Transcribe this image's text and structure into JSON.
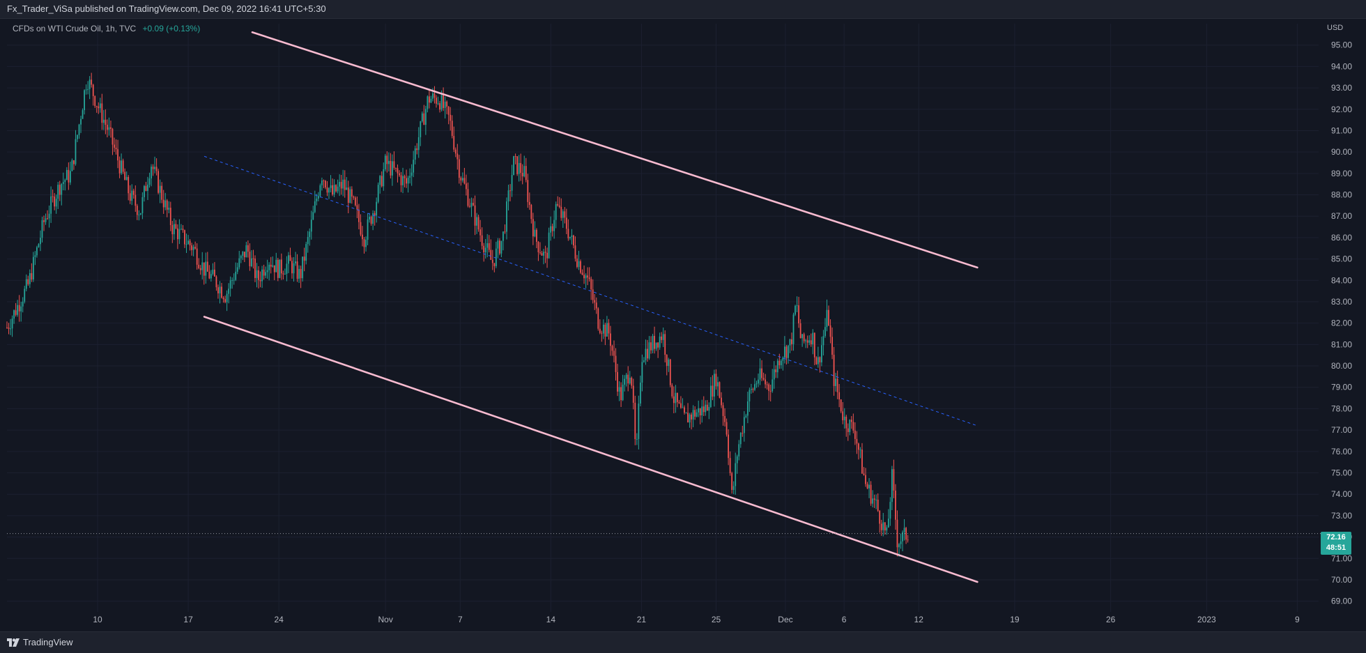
{
  "header": {
    "publisher": "Fx_Trader_ViSa published on TradingView.com, Dec 09, 2022 16:41 UTC+5:30"
  },
  "legend": {
    "symbol": "CFDs on WTI Crude Oil, 1h, TVC",
    "change": "+0.09 (+0.13%)"
  },
  "axis": {
    "currency": "USD"
  },
  "price_tag": {
    "price": "72.16",
    "countdown": "48:51"
  },
  "footer": {
    "brand": "TradingView"
  },
  "colors": {
    "background": "#131722",
    "up": "#26a69a",
    "down": "#ef5350",
    "channel": "#f8bbd0",
    "midline": "#2962ff",
    "price_line": "#9598a1"
  },
  "chart_data": {
    "type": "candlestick",
    "interval": "1h",
    "ylim": [
      68.5,
      96.0
    ],
    "y_ticks": [
      69,
      70,
      71,
      72,
      73,
      74,
      75,
      76,
      77,
      78,
      79,
      80,
      81,
      82,
      83,
      84,
      85,
      86,
      87,
      88,
      89,
      90,
      91,
      92,
      93,
      94,
      95
    ],
    "x_ticks": [
      "10",
      "17",
      "24",
      "Nov",
      "7",
      "14",
      "21",
      "25",
      "Dec",
      "6",
      "12",
      "19",
      "26",
      "2023",
      "9"
    ],
    "current_price": 72.16,
    "price_path": [
      [
        0,
        81.8
      ],
      [
        4,
        83.8
      ],
      [
        7,
        86.8
      ],
      [
        10,
        88.5
      ],
      [
        12,
        89.0
      ],
      [
        15,
        93.5
      ],
      [
        17,
        92.2
      ],
      [
        19,
        91.0
      ],
      [
        21,
        89.5
      ],
      [
        23,
        88.0
      ],
      [
        25,
        87.2
      ],
      [
        27,
        89.5
      ],
      [
        29,
        88.0
      ],
      [
        31,
        86.5
      ],
      [
        33,
        86.0
      ],
      [
        35,
        85.5
      ],
      [
        37,
        84.5
      ],
      [
        39,
        84.0
      ],
      [
        41,
        83.3
      ],
      [
        43,
        84.5
      ],
      [
        45,
        85.5
      ],
      [
        47,
        84.0
      ],
      [
        49,
        85.0
      ],
      [
        51,
        84.5
      ],
      [
        53,
        84.8
      ],
      [
        55,
        84.2
      ],
      [
        57,
        86.5
      ],
      [
        59,
        89.0
      ],
      [
        61,
        88.0
      ],
      [
        63,
        88.5
      ],
      [
        65,
        87.5
      ],
      [
        67,
        86.0
      ],
      [
        69,
        87.5
      ],
      [
        71,
        89.5
      ],
      [
        73,
        89.0
      ],
      [
        75,
        88.5
      ],
      [
        77,
        90.5
      ],
      [
        79,
        92.5
      ],
      [
        81,
        92.5
      ],
      [
        83,
        91.5
      ],
      [
        85,
        89.0
      ],
      [
        87,
        87.5
      ],
      [
        89,
        86.0
      ],
      [
        91,
        84.8
      ],
      [
        93,
        86.0
      ],
      [
        95,
        89.5
      ],
      [
        97,
        89.0
      ],
      [
        99,
        86.0
      ],
      [
        101,
        85.0
      ],
      [
        103,
        87.5
      ],
      [
        105,
        86.5
      ],
      [
        107,
        85.0
      ],
      [
        109,
        84.0
      ],
      [
        111,
        82.0
      ],
      [
        113,
        81.5
      ],
      [
        115,
        78.5
      ],
      [
        117,
        80.0
      ],
      [
        118,
        75.5
      ],
      [
        119,
        80.5
      ],
      [
        121,
        81.0
      ],
      [
        123,
        81.5
      ],
      [
        125,
        78.5
      ],
      [
        127,
        77.5
      ],
      [
        129,
        77.8
      ],
      [
        131,
        78.0
      ],
      [
        133,
        79.5
      ],
      [
        135,
        77.0
      ],
      [
        136,
        73.8
      ],
      [
        137,
        76.0
      ],
      [
        139,
        78.5
      ],
      [
        141,
        79.5
      ],
      [
        143,
        79.0
      ],
      [
        145,
        80.5
      ],
      [
        147,
        81.0
      ],
      [
        148,
        83.0
      ],
      [
        149,
        81.0
      ],
      [
        151,
        81.5
      ],
      [
        152,
        80.0
      ],
      [
        154,
        82.5
      ],
      [
        155,
        79.5
      ],
      [
        157,
        77.5
      ],
      [
        159,
        77.0
      ],
      [
        161,
        74.5
      ],
      [
        163,
        73.5
      ],
      [
        165,
        72.0
      ],
      [
        166,
        74.8
      ],
      [
        167,
        71.8
      ],
      [
        169,
        72.16
      ]
    ],
    "drawings": [
      {
        "type": "trendline",
        "name": "Upper channel",
        "p1": [
          46,
          95.6
        ],
        "p2": [
          182,
          84.6
        ]
      },
      {
        "type": "trendline",
        "name": "Lower channel",
        "p1": [
          37,
          82.3
        ],
        "p2": [
          182,
          69.9
        ]
      },
      {
        "type": "trendline-dashed",
        "name": "Mid line",
        "p1": [
          37,
          89.8
        ],
        "p2": [
          182,
          77.2
        ]
      }
    ],
    "x_tick_positions": [
      17,
      34,
      51,
      71,
      85,
      102,
      119,
      133,
      146,
      157,
      171,
      189,
      207,
      225,
      242
    ],
    "x_range": [
      0,
      246
    ]
  }
}
